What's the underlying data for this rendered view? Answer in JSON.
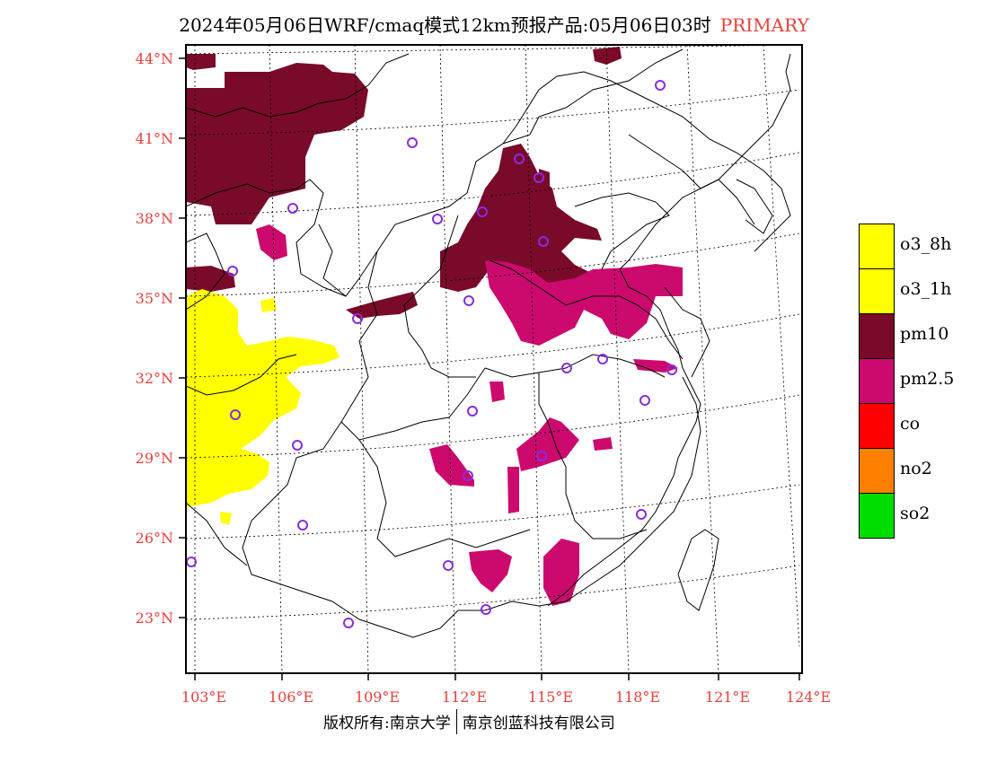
{
  "title": {
    "text": "2024年05月06日WRF/cmaq模式12km预报产品:05月06日03时",
    "tag": "PRIMARY"
  },
  "map": {
    "lat_labels": [
      "44°N",
      "41°N",
      "38°N",
      "35°N",
      "32°N",
      "29°N",
      "26°N",
      "23°N"
    ],
    "lon_labels": [
      "103°E",
      "106°E",
      "109°E",
      "112°E",
      "115°E",
      "118°E",
      "121°E",
      "124°E"
    ],
    "label_color": "#e8403a"
  },
  "legend": [
    {
      "label": "o3_8h",
      "color": "#ffff00"
    },
    {
      "label": "o3_1h",
      "color": "#ffff00"
    },
    {
      "label": "pm10",
      "color": "#7a0a2a"
    },
    {
      "label": "pm2.5",
      "color": "#cc0a6e"
    },
    {
      "label": "co",
      "color": "#ff0000"
    },
    {
      "label": "no2",
      "color": "#ff8000"
    },
    {
      "label": "so2",
      "color": "#00dd00"
    }
  ],
  "colors": {
    "pm10": "#7a0a2a",
    "pm25": "#cc0a6e",
    "o3": "#ffff00",
    "station": "#8a2be2"
  },
  "copyright": {
    "left": "版权所有:南京大学",
    "right": "南京创蓝科技有限公司"
  }
}
